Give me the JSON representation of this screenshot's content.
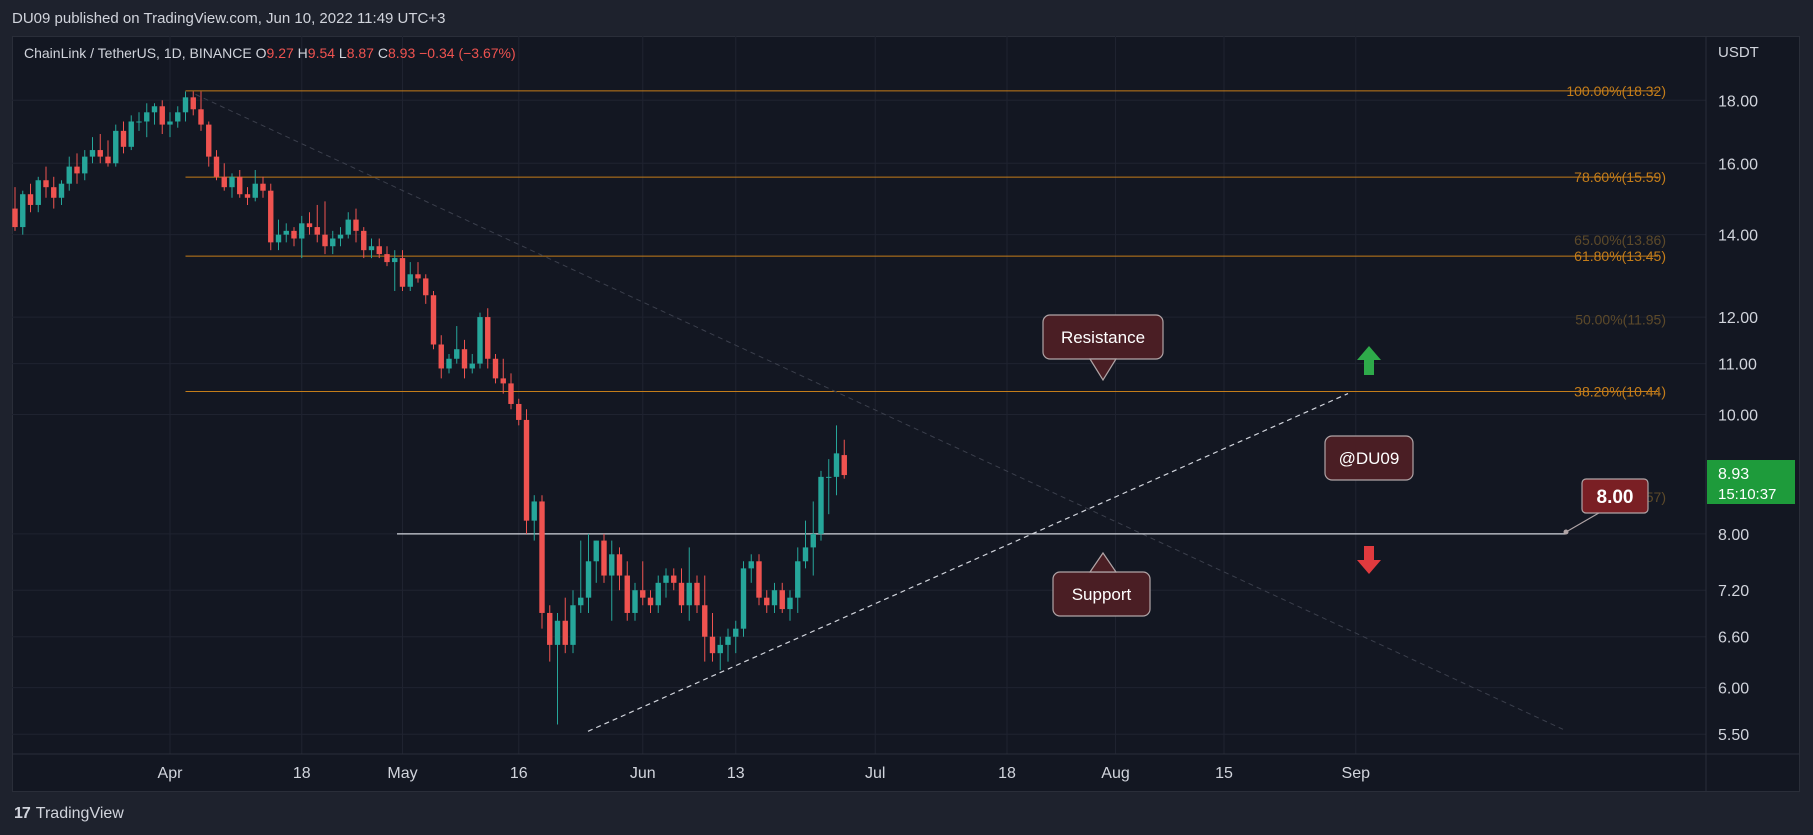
{
  "header": {
    "publisher_line": "DU09 published on TradingView.com, Jun 10, 2022 11:49 UTC+3"
  },
  "legend": {
    "symbol": "ChainLink / TetherUS, 1D, BINANCE",
    "open_label": "O",
    "open": "9.27",
    "high_label": "H",
    "high": "9.54",
    "low_label": "L",
    "low": "8.87",
    "close_label": "C",
    "close": "8.93",
    "change": "−0.34 (−3.67%)"
  },
  "footer": {
    "brand": "TradingView",
    "brand_mark": "17"
  },
  "colors": {
    "background": "#131722",
    "up": "#26a69a",
    "down": "#ef5350",
    "fib": "#c47d1a",
    "fib_faded": "#5d4a2a",
    "grid": "#1f2330",
    "price_tag": "#1e9b3b",
    "annotation_bg": "#4a1e24",
    "annotation_border": "#b0a4a6",
    "arrow_up": "#2eaa4a",
    "arrow_down": "#e03a3e"
  },
  "chart_data": {
    "type": "candlestick",
    "symbol": "ChainLink / TetherUS",
    "interval": "1D",
    "exchange": "BINANCE",
    "y_axis_unit": "USDT",
    "y_scale": "log",
    "ylim": [
      5.3,
      20.3
    ],
    "y_ticks": [
      "18.00",
      "16.00",
      "14.00",
      "12.00",
      "11.00",
      "10.00",
      "8.00",
      "7.20",
      "6.60",
      "6.00",
      "5.50"
    ],
    "y_tick_values": [
      18.0,
      16.0,
      14.0,
      12.0,
      11.0,
      10.0,
      8.0,
      7.2,
      6.6,
      6.0,
      5.5
    ],
    "x_ticks": [
      {
        "date": "2022-04-01",
        "label": "Apr"
      },
      {
        "date": "2022-04-18",
        "label": "18"
      },
      {
        "date": "2022-05-01",
        "label": "May"
      },
      {
        "date": "2022-05-16",
        "label": "16"
      },
      {
        "date": "2022-06-01",
        "label": "Jun"
      },
      {
        "date": "2022-06-13",
        "label": "13"
      },
      {
        "date": "2022-07-01",
        "label": "Jul"
      },
      {
        "date": "2022-07-18",
        "label": "18"
      },
      {
        "date": "2022-08-01",
        "label": "Aug"
      },
      {
        "date": "2022-08-15",
        "label": "15"
      },
      {
        "date": "2022-09-01",
        "label": "Sep"
      }
    ],
    "candles": [
      [
        "2022-03-12",
        14.7,
        15.3,
        14.1,
        14.2
      ],
      [
        "2022-03-13",
        14.2,
        15.2,
        14.0,
        15.1
      ],
      [
        "2022-03-14",
        15.1,
        15.4,
        14.6,
        14.8
      ],
      [
        "2022-03-15",
        14.8,
        15.6,
        14.6,
        15.5
      ],
      [
        "2022-03-16",
        15.5,
        15.9,
        15.0,
        15.3
      ],
      [
        "2022-03-17",
        15.3,
        15.6,
        14.7,
        15.0
      ],
      [
        "2022-03-18",
        15.0,
        15.5,
        14.8,
        15.4
      ],
      [
        "2022-03-19",
        15.4,
        16.2,
        15.2,
        15.9
      ],
      [
        "2022-03-20",
        15.9,
        16.3,
        15.4,
        15.7
      ],
      [
        "2022-03-21",
        15.7,
        16.4,
        15.5,
        16.2
      ],
      [
        "2022-03-22",
        16.2,
        16.8,
        16.0,
        16.4
      ],
      [
        "2022-03-23",
        16.4,
        16.9,
        16.0,
        16.2
      ],
      [
        "2022-03-24",
        16.2,
        16.7,
        15.9,
        16.0
      ],
      [
        "2022-03-25",
        16.0,
        17.2,
        15.9,
        17.0
      ],
      [
        "2022-03-26",
        17.0,
        17.3,
        16.3,
        16.5
      ],
      [
        "2022-03-27",
        16.5,
        17.5,
        16.4,
        17.3
      ],
      [
        "2022-03-28",
        17.3,
        17.6,
        17.0,
        17.3
      ],
      [
        "2022-03-29",
        17.3,
        17.9,
        16.8,
        17.6
      ],
      [
        "2022-03-30",
        17.6,
        17.9,
        17.2,
        17.8
      ],
      [
        "2022-03-31",
        17.8,
        18.0,
        16.9,
        17.2
      ],
      [
        "2022-04-01",
        17.2,
        17.6,
        16.8,
        17.3
      ],
      [
        "2022-04-02",
        17.3,
        17.8,
        17.1,
        17.6
      ],
      [
        "2022-04-03",
        17.6,
        18.3,
        17.3,
        18.1
      ],
      [
        "2022-04-04",
        18.1,
        18.3,
        17.5,
        17.7
      ],
      [
        "2022-04-05",
        17.7,
        18.3,
        17.0,
        17.2
      ],
      [
        "2022-04-06",
        17.2,
        17.3,
        15.9,
        16.2
      ],
      [
        "2022-04-07",
        16.2,
        16.4,
        15.5,
        15.6
      ],
      [
        "2022-04-08",
        15.6,
        16.0,
        15.2,
        15.3
      ],
      [
        "2022-04-09",
        15.3,
        15.7,
        15.0,
        15.6
      ],
      [
        "2022-04-10",
        15.6,
        15.8,
        15.0,
        15.1
      ],
      [
        "2022-04-11",
        15.1,
        15.3,
        14.8,
        15.0
      ],
      [
        "2022-04-12",
        15.0,
        15.8,
        14.9,
        15.4
      ],
      [
        "2022-04-13",
        15.4,
        15.6,
        15.0,
        15.2
      ],
      [
        "2022-04-14",
        15.2,
        15.4,
        13.6,
        13.8
      ],
      [
        "2022-04-15",
        13.8,
        14.4,
        13.6,
        14.0
      ],
      [
        "2022-04-16",
        14.0,
        14.3,
        13.8,
        14.1
      ],
      [
        "2022-04-17",
        14.1,
        14.2,
        13.7,
        13.9
      ],
      [
        "2022-04-18",
        13.9,
        14.5,
        13.4,
        14.3
      ],
      [
        "2022-04-19",
        14.3,
        14.6,
        14.0,
        14.2
      ],
      [
        "2022-04-20",
        14.2,
        14.8,
        13.8,
        14.0
      ],
      [
        "2022-04-21",
        14.0,
        14.9,
        13.5,
        13.7
      ],
      [
        "2022-04-22",
        13.7,
        14.1,
        13.5,
        13.9
      ],
      [
        "2022-04-23",
        13.9,
        14.2,
        13.7,
        14.0
      ],
      [
        "2022-04-24",
        14.0,
        14.6,
        13.9,
        14.4
      ],
      [
        "2022-04-25",
        14.4,
        14.7,
        13.8,
        14.1
      ],
      [
        "2022-04-26",
        14.1,
        14.2,
        13.4,
        13.6
      ],
      [
        "2022-04-27",
        13.6,
        13.9,
        13.4,
        13.7
      ],
      [
        "2022-04-28",
        13.7,
        13.9,
        13.4,
        13.5
      ],
      [
        "2022-04-29",
        13.5,
        13.7,
        13.2,
        13.3
      ],
      [
        "2022-04-30",
        13.3,
        13.6,
        12.6,
        13.4
      ],
      [
        "2022-05-01",
        13.4,
        13.6,
        12.6,
        12.7
      ],
      [
        "2022-05-02",
        12.7,
        13.3,
        12.6,
        13.0
      ],
      [
        "2022-05-03",
        13.0,
        13.3,
        12.8,
        12.9
      ],
      [
        "2022-05-04",
        12.9,
        13.0,
        12.3,
        12.5
      ],
      [
        "2022-05-05",
        12.5,
        12.6,
        11.3,
        11.4
      ],
      [
        "2022-05-06",
        11.4,
        11.6,
        10.7,
        10.9
      ],
      [
        "2022-05-07",
        10.9,
        11.2,
        10.8,
        11.1
      ],
      [
        "2022-05-08",
        11.1,
        11.8,
        11.0,
        11.3
      ],
      [
        "2022-05-09",
        11.3,
        11.5,
        10.7,
        10.9
      ],
      [
        "2022-05-10",
        10.9,
        11.2,
        10.8,
        11.0
      ],
      [
        "2022-05-11",
        11.0,
        12.1,
        10.9,
        12.0
      ],
      [
        "2022-05-12",
        12.0,
        12.2,
        10.9,
        11.1
      ],
      [
        "2022-05-13",
        11.1,
        11.2,
        10.6,
        10.7
      ],
      [
        "2022-05-14",
        10.7,
        11.1,
        10.4,
        10.6
      ],
      [
        "2022-05-15",
        10.6,
        10.8,
        10.1,
        10.2
      ],
      [
        "2022-05-16",
        10.2,
        10.3,
        9.8,
        9.9
      ],
      [
        "2022-05-17",
        9.9,
        10.1,
        8.0,
        8.2
      ],
      [
        "2022-05-18",
        8.2,
        8.6,
        7.9,
        8.5
      ],
      [
        "2022-05-19",
        8.5,
        8.6,
        6.7,
        6.9
      ],
      [
        "2022-05-20",
        6.9,
        7.0,
        6.3,
        6.5
      ],
      [
        "2022-05-21",
        6.5,
        6.9,
        5.6,
        6.8
      ],
      [
        "2022-05-22",
        6.8,
        7.1,
        6.4,
        6.5
      ],
      [
        "2022-05-23",
        6.5,
        7.2,
        6.4,
        7.0
      ],
      [
        "2022-05-24",
        7.0,
        7.9,
        6.9,
        7.1
      ],
      [
        "2022-05-25",
        7.1,
        8.0,
        6.9,
        7.6
      ],
      [
        "2022-05-26",
        7.6,
        7.9,
        7.3,
        7.9
      ],
      [
        "2022-05-27",
        7.9,
        8.0,
        7.3,
        7.4
      ],
      [
        "2022-05-28",
        7.4,
        7.9,
        6.8,
        7.7
      ],
      [
        "2022-05-29",
        7.7,
        7.8,
        7.2,
        7.4
      ],
      [
        "2022-05-30",
        7.4,
        7.6,
        6.8,
        6.9
      ],
      [
        "2022-05-31",
        6.9,
        7.3,
        6.8,
        7.2
      ],
      [
        "2022-06-01",
        7.2,
        7.6,
        7.0,
        7.1
      ],
      [
        "2022-06-02",
        7.1,
        7.2,
        6.9,
        7.0
      ],
      [
        "2022-06-03",
        7.0,
        7.4,
        6.9,
        7.3
      ],
      [
        "2022-06-04",
        7.3,
        7.5,
        7.1,
        7.4
      ],
      [
        "2022-06-05",
        7.4,
        7.5,
        7.2,
        7.3
      ],
      [
        "2022-06-06",
        7.3,
        7.5,
        6.9,
        7.0
      ],
      [
        "2022-06-07",
        7.0,
        7.8,
        6.8,
        7.3
      ],
      [
        "2022-06-08",
        7.3,
        7.4,
        6.9,
        7.0
      ],
      [
        "2022-06-09",
        7.0,
        7.4,
        6.3,
        6.6
      ],
      [
        "2022-06-10",
        6.6,
        6.9,
        6.3,
        6.4
      ],
      [
        "2022-06-11",
        6.4,
        6.6,
        6.2,
        6.5
      ],
      [
        "2022-06-12",
        6.5,
        6.7,
        6.3,
        6.6
      ],
      [
        "2022-06-13",
        6.6,
        6.8,
        6.4,
        6.7
      ],
      [
        "2022-06-14",
        6.7,
        7.6,
        6.6,
        7.5
      ],
      [
        "2022-06-15",
        7.5,
        7.7,
        7.3,
        7.6
      ],
      [
        "2022-06-16",
        7.6,
        7.7,
        7.0,
        7.1
      ],
      [
        "2022-06-17",
        7.1,
        7.2,
        6.9,
        7.0
      ],
      [
        "2022-06-18",
        7.0,
        7.3,
        6.9,
        7.2
      ],
      [
        "2022-06-19",
        7.2,
        7.3,
        6.9,
        6.95
      ],
      [
        "2022-06-20",
        6.95,
        7.2,
        6.8,
        7.1
      ],
      [
        "2022-06-21",
        7.1,
        7.8,
        6.9,
        7.6
      ],
      [
        "2022-06-22",
        7.6,
        8.2,
        7.5,
        7.8
      ],
      [
        "2022-06-23",
        7.8,
        8.5,
        7.4,
        8.0
      ],
      [
        "2022-06-24",
        8.0,
        9.0,
        7.9,
        8.9
      ],
      [
        "2022-06-25",
        8.9,
        9.2,
        8.3,
        8.9
      ],
      [
        "2022-06-26",
        8.9,
        9.8,
        8.6,
        9.3
      ],
      [
        "2022-06-27",
        9.27,
        9.54,
        8.87,
        8.93
      ]
    ],
    "fib_levels": [
      {
        "label": "100.00%(18.32)",
        "value": 18.32,
        "faded": false
      },
      {
        "label": "78.60%(15.59)",
        "value": 15.59,
        "faded": false
      },
      {
        "label": "65.00%(13.86)",
        "value": 13.86,
        "faded": true
      },
      {
        "label": "61.80%(13.45)",
        "value": 13.45,
        "faded": false
      },
      {
        "label": "50.00%(11.95)",
        "value": 11.95,
        "faded": true
      },
      {
        "label": "38.20%(10.44)",
        "value": 10.44,
        "faded": false
      },
      {
        "label": "23.60%(8.57)",
        "value": 8.57,
        "faded": true
      }
    ],
    "horizontal_line": {
      "value": 8.0
    },
    "last_price": {
      "value": "8.93",
      "countdown": "15:10:37"
    },
    "annotations": {
      "resistance": "Resistance",
      "support": "Support",
      "watermark": "@DU09",
      "price_callout": "8.00"
    }
  }
}
